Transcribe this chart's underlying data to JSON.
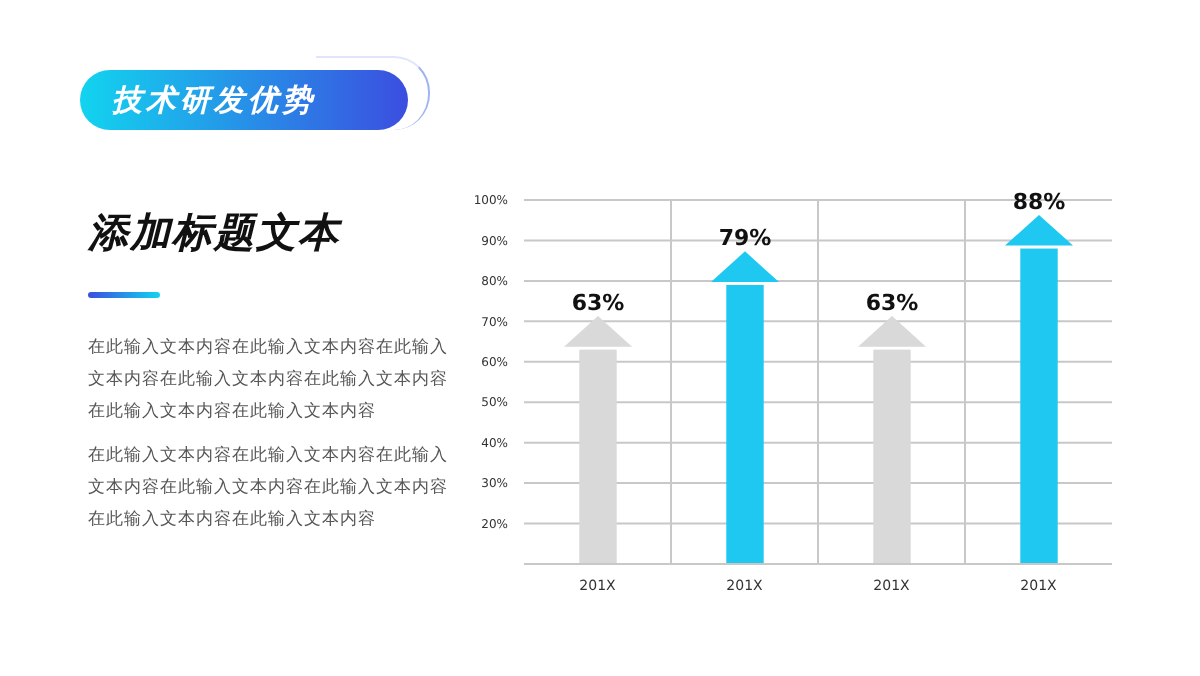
{
  "chart_data": {
    "type": "bar",
    "title": "技术研发优势",
    "subtitle": "添加标题文本",
    "annotations": [
      "在此输入文本内容在此输入文本内容在此输入文本内容在此输入文本内容在此输入文本内容在此输入文本内容在此输入文本内容",
      "在此输入文本内容在此输入文本内容在此输入文本内容在此输入文本内容在此输入文本内容在此输入文本内容在此输入文本内容"
    ],
    "categories": [
      "201X",
      "201X",
      "201X",
      "201X"
    ],
    "values": [
      63,
      79,
      63,
      88
    ],
    "value_labels": [
      "63%",
      "79%",
      "63%",
      "88%"
    ],
    "colors": [
      "#d9d9d9",
      "#1ec8f0",
      "#d9d9d9",
      "#1ec8f0"
    ],
    "ylim": [
      10,
      100
    ],
    "yticks": [
      {
        "value": 20,
        "label": "20%"
      },
      {
        "value": 30,
        "label": "30%"
      },
      {
        "value": 40,
        "label": "40%"
      },
      {
        "value": 50,
        "label": "50%"
      },
      {
        "value": 60,
        "label": "60%"
      },
      {
        "value": 70,
        "label": "70%"
      },
      {
        "value": 80,
        "label": "80%"
      },
      {
        "value": 90,
        "label": "90%"
      },
      {
        "value": 100,
        "label": "100%"
      }
    ],
    "grid": true
  }
}
